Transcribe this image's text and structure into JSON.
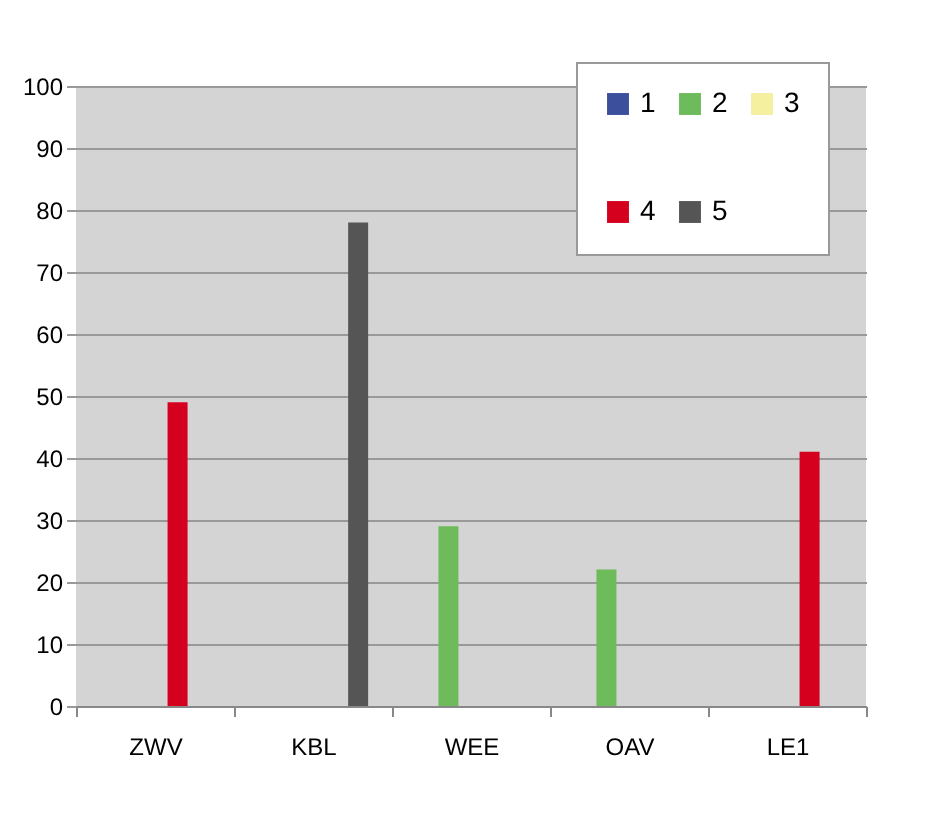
{
  "chart_data": {
    "type": "bar",
    "categories": [
      "ZWV",
      "KBL",
      "WEE",
      "OAV",
      "LE1"
    ],
    "series": [
      {
        "name": "1",
        "color": "#3b4f9c",
        "values": [
          null,
          null,
          null,
          null,
          null
        ]
      },
      {
        "name": "2",
        "color": "#6dbb5a",
        "values": [
          null,
          null,
          29,
          22,
          null
        ]
      },
      {
        "name": "3",
        "color": "#f5f0a0",
        "values": [
          null,
          null,
          null,
          null,
          null
        ]
      },
      {
        "name": "4",
        "color": "#d4001e",
        "values": [
          49,
          null,
          null,
          null,
          41
        ]
      },
      {
        "name": "5",
        "color": "#555555",
        "values": [
          null,
          78,
          null,
          null,
          null
        ]
      }
    ],
    "ylim": [
      0,
      100
    ],
    "yticks": [
      0,
      10,
      20,
      30,
      40,
      50,
      60,
      70,
      80,
      90,
      100
    ],
    "grid": "y",
    "legend": "top right"
  }
}
